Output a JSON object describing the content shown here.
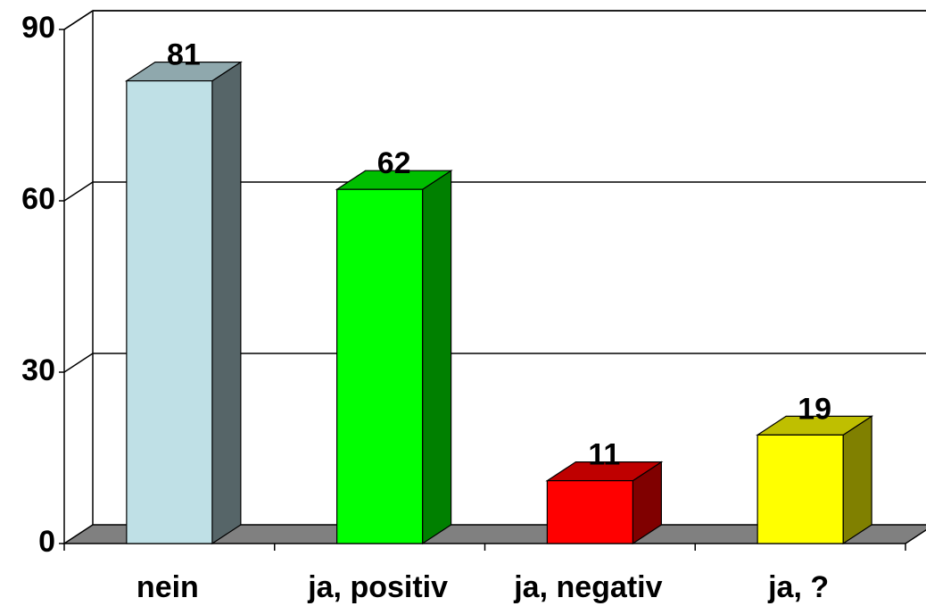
{
  "chart_data": {
    "type": "bar3d",
    "categories": [
      "nein",
      "ja, positiv",
      "ja, negativ",
      "ja, ?"
    ],
    "values": [
      81,
      62,
      11,
      19
    ],
    "colors": [
      "#bfe0e6",
      "#00ff00",
      "#ff0000",
      "#ffff00"
    ],
    "ylim": [
      0,
      90
    ],
    "yticks": [
      0,
      30,
      60,
      90
    ],
    "grid": true
  }
}
